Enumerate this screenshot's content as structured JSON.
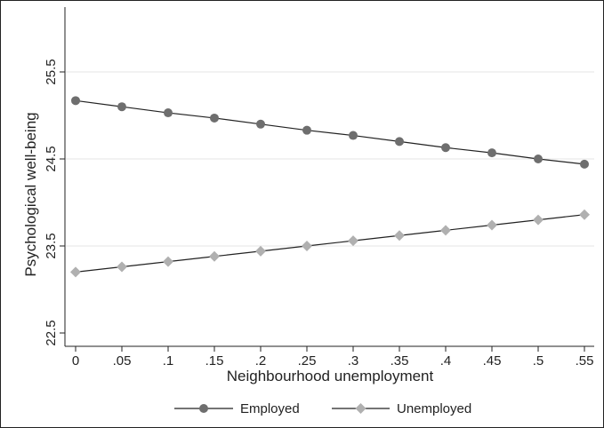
{
  "chart_data": {
    "type": "line",
    "xlabel": "Neighbourhood unemployment",
    "ylabel": "Psychological well-being",
    "x": [
      0,
      0.05,
      0.1,
      0.15,
      0.2,
      0.25,
      0.3,
      0.35,
      0.4,
      0.45,
      0.5,
      0.55
    ],
    "x_tick_labels": [
      "0",
      ".05",
      ".1",
      ".15",
      ".2",
      ".25",
      ".3",
      ".35",
      ".4",
      ".45",
      ".5",
      ".55"
    ],
    "y_ticks": [
      22.5,
      23.5,
      24.5,
      25.5
    ],
    "y_tick_labels": [
      "22.5",
      "23.5",
      "24.5",
      "25.5"
    ],
    "xlim": [
      0,
      0.55
    ],
    "ylim": [
      22.4,
      26.1
    ],
    "grid": "horizontal",
    "legend_position": "bottom",
    "series": [
      {
        "name": "Employed",
        "marker": "circle",
        "color": "#6e6e6e",
        "values": [
          25.17,
          25.1,
          25.03,
          24.97,
          24.9,
          24.83,
          24.77,
          24.7,
          24.63,
          24.57,
          24.5,
          24.44
        ]
      },
      {
        "name": "Unemployed",
        "marker": "diamond",
        "color": "#b0b0b0",
        "values": [
          23.2,
          23.26,
          23.32,
          23.38,
          23.44,
          23.5,
          23.56,
          23.62,
          23.68,
          23.74,
          23.8,
          23.86
        ]
      }
    ]
  }
}
